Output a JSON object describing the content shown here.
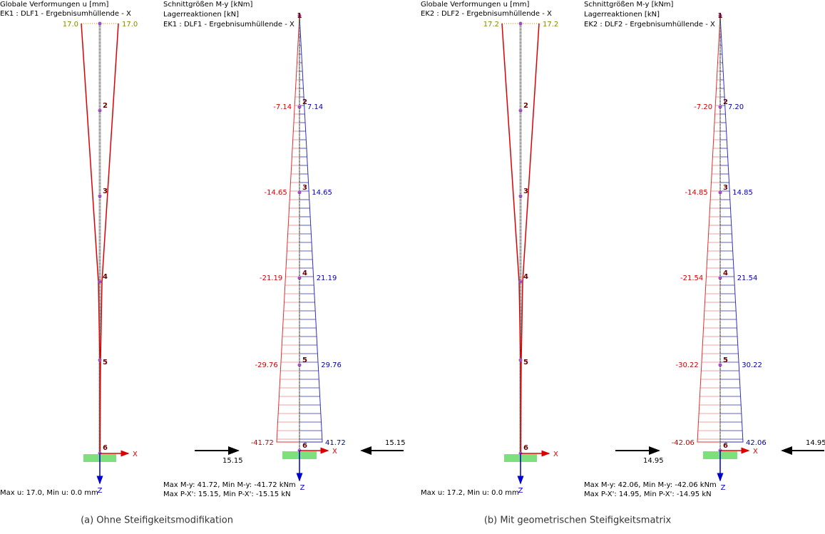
{
  "panels": [
    {
      "deformation": {
        "title": [
          "Globale Verformungen u [mm]",
          "EK1 : DLF1 - Ergebnisumhüllende - X"
        ],
        "top_values": [
          "17.0",
          "17.0"
        ],
        "nodes": [
          "2",
          "3",
          "4",
          "5",
          "6"
        ],
        "axes": [
          "X",
          "Z"
        ],
        "footer": "Max u: 17.0, Min u: 0.0 mm"
      },
      "moment": {
        "title": [
          "Schnittgrößen M-y [kNm]",
          "Lagerreaktionen [kN]",
          "EK1 : DLF1 - Ergebnisumhüllende - X"
        ],
        "nodes": [
          "1",
          "2",
          "3",
          "4",
          "5",
          "6"
        ],
        "min_labels": [
          "-7.14",
          "-14.65",
          "-21.19",
          "-29.76",
          "-41.72"
        ],
        "max_labels": [
          "7.14",
          "14.65",
          "21.19",
          "29.76",
          "41.72"
        ],
        "axes": [
          "X",
          "Z"
        ],
        "reaction_left": "15.15",
        "reaction_right": "15.15",
        "footer": [
          "Max M-y: 41.72, Min M-y: -41.72 kNm",
          "Max P-X': 15.15, Min P-X': -15.15 kN"
        ]
      },
      "caption": "(a) Ohne Steifigkeitsmodifikation"
    },
    {
      "deformation": {
        "title": [
          "Globale Verformungen u [mm]",
          "EK2 : DLF2 - Ergebnisumhüllende - X"
        ],
        "top_values": [
          "17.2",
          "17.2"
        ],
        "nodes": [
          "2",
          "3",
          "4",
          "5",
          "6"
        ],
        "axes": [
          "X",
          "Z"
        ],
        "footer": "Max u: 17.2, Min u: 0.0 mm"
      },
      "moment": {
        "title": [
          "Schnittgrößen M-y [kNm]",
          "Lagerreaktionen [kN]",
          "EK2 : DLF2 - Ergebnisumhüllende - X"
        ],
        "nodes": [
          "1",
          "2",
          "3",
          "4",
          "5",
          "6"
        ],
        "min_labels": [
          "-7.20",
          "-14.85",
          "-21.54",
          "-30.22",
          "-42.06"
        ],
        "max_labels": [
          "7.20",
          "14.85",
          "21.54",
          "30.22",
          "42.06"
        ],
        "axes": [
          "X",
          "Z"
        ],
        "reaction_left": "14.95",
        "reaction_right": "14.95",
        "footer": [
          "Max M-y: 42.06, Min M-y: -42.06 kNm",
          "Max P-X': 14.95, Min P-X': -14.95 kN"
        ]
      },
      "caption": "(b) Mit geometrischen Steifigkeitsmatrix"
    }
  ]
}
